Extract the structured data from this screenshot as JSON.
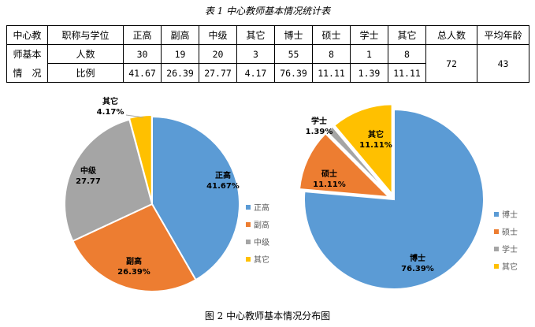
{
  "table": {
    "caption": "表 1  中心教师基本情况统计表",
    "row_head_lines": [
      "中心教",
      "师基本",
      "情　况"
    ],
    "headers": [
      "职称与学位",
      "正高",
      "副高",
      "中级",
      "其它",
      "博士",
      "硕士",
      "学士",
      "其它",
      "总人数",
      "平均年龄"
    ],
    "count_label": "人数",
    "counts": [
      "30",
      "19",
      "20",
      "3",
      "55",
      "8",
      "1",
      "8"
    ],
    "ratio_label": "比例",
    "ratios": [
      "41.67",
      "26.39",
      "27.77",
      "4.17",
      "76.39",
      "11.11",
      "1.39",
      "11.11"
    ],
    "total": "72",
    "avg_age": "43"
  },
  "figure_caption": "图 2  中心教师基本情况分布图",
  "chart_data": [
    {
      "type": "pie",
      "categories": [
        "正高",
        "副高",
        "中级",
        "其它"
      ],
      "values": [
        41.67,
        26.39,
        27.77,
        4.17
      ],
      "labels": [
        "41.67%",
        "26.39%",
        "27.77",
        "4.17%"
      ],
      "colors": [
        "#5B9BD5",
        "#ED7D31",
        "#A5A5A5",
        "#FFC000"
      ],
      "legend": "right"
    },
    {
      "type": "pie",
      "categories": [
        "博士",
        "硕士",
        "学士",
        "其它"
      ],
      "values": [
        76.39,
        11.11,
        1.39,
        11.11
      ],
      "labels": [
        "76.39%",
        "11.11%",
        "1.39%",
        "11.11%"
      ],
      "colors": [
        "#5B9BD5",
        "#ED7D31",
        "#A5A5A5",
        "#FFC000"
      ],
      "legend": "right"
    }
  ]
}
